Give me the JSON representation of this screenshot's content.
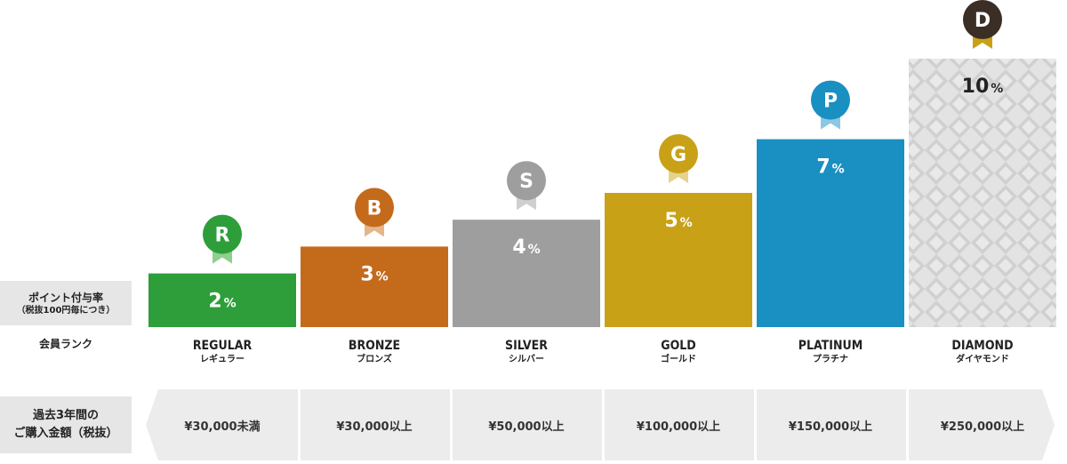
{
  "labels": {
    "rate_line1": "ポイント付与率",
    "rate_line2": "（税抜100円毎につき）",
    "rank": "会員ランク",
    "purchase_line1": "過去3年間の",
    "purchase_line2": "ご購入金額（税抜）"
  },
  "chart_data": {
    "type": "bar",
    "ylabel": "ポイント付与率（税抜100円毎につき）",
    "ylim": [
      0,
      11
    ],
    "unit": "%",
    "categories": [
      "REGULAR",
      "BRONZE",
      "SILVER",
      "GOLD",
      "PLATINUM",
      "DIAMOND"
    ],
    "values": [
      2,
      3,
      4,
      5,
      7,
      10
    ],
    "ranks": [
      {
        "en": "REGULAR",
        "jp": "レギュラー",
        "badge": "R",
        "value": 2,
        "amount": "¥30,000未満",
        "color": "#2e9e3a",
        "badge_color": "#2e9e3a",
        "ribbon_color": "#8fcf8f"
      },
      {
        "en": "BRONZE",
        "jp": "ブロンズ",
        "badge": "B",
        "value": 3,
        "amount": "¥30,000以上",
        "color": "#c46a1b",
        "badge_color": "#c46a1b",
        "ribbon_color": "#e6b58a"
      },
      {
        "en": "SILVER",
        "jp": "シルバー",
        "badge": "S",
        "value": 4,
        "amount": "¥50,000以上",
        "color": "#9e9e9e",
        "badge_color": "#9e9e9e",
        "ribbon_color": "#cfcfcf"
      },
      {
        "en": "GOLD",
        "jp": "ゴールド",
        "badge": "G",
        "value": 5,
        "amount": "¥100,000以上",
        "color": "#c9a117",
        "badge_color": "#c9a117",
        "ribbon_color": "#e5d28c"
      },
      {
        "en": "PLATINUM",
        "jp": "プラチナ",
        "badge": "P",
        "value": 7,
        "amount": "¥150,000以上",
        "color": "#1a8fc2",
        "badge_color": "#1a8fc2",
        "ribbon_color": "#8cc8e2"
      },
      {
        "en": "DIAMOND",
        "jp": "ダイヤモンド",
        "badge": "D",
        "value": 10,
        "amount": "¥250,000以上",
        "color": "#dcdcdc",
        "badge_color": "#3a2e25",
        "ribbon_color": "#c9a117",
        "pattern": "diamond",
        "value_color": "#222222"
      }
    ]
  }
}
